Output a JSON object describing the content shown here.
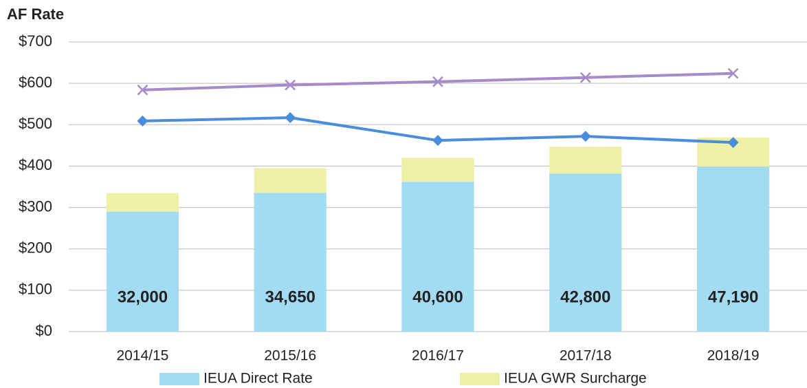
{
  "chart_data": {
    "type": "bar",
    "stacked": true,
    "title": "AF Rate",
    "categories": [
      "2014/15",
      "2015/16",
      "2016/17",
      "2017/18",
      "2018/19"
    ],
    "series": [
      {
        "name": "IEUA Direct Rate",
        "color": "#a3dbf3",
        "values": [
          290,
          335,
          362,
          382,
          399
        ]
      },
      {
        "name": "IEUA GWR Surcharge",
        "color": "#eef0a8",
        "values": [
          45,
          60,
          58,
          65,
          70
        ]
      },
      {
        "type": "line",
        "marker": "diamond",
        "color": "#4a8ddb",
        "values": [
          509,
          517,
          462,
          472,
          457
        ]
      },
      {
        "type": "line",
        "marker": "x",
        "color": "#a68bc9",
        "values": [
          584,
          596,
          604,
          614,
          624
        ]
      }
    ],
    "annotations": [
      "32,000",
      "34,650",
      "40,600",
      "42,800",
      "47,190"
    ],
    "ylim": [
      0,
      700
    ],
    "yticks": [
      {
        "value": 0,
        "label": "$0"
      },
      {
        "value": 100,
        "label": "$100"
      },
      {
        "value": 200,
        "label": "$200"
      },
      {
        "value": 300,
        "label": "$300"
      },
      {
        "value": 400,
        "label": "$400"
      },
      {
        "value": 500,
        "label": "$500"
      },
      {
        "value": 600,
        "label": "$600"
      },
      {
        "value": 700,
        "label": "$700"
      }
    ],
    "grid": true,
    "legend": "bottom"
  }
}
